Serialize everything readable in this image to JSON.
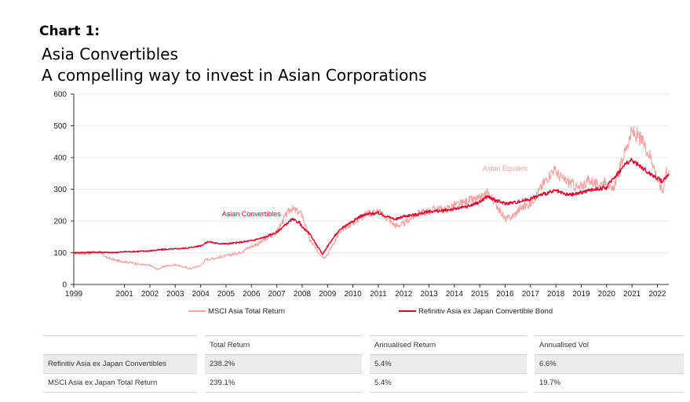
{
  "header": {
    "chart_label": "Chart 1:",
    "title": "Asia Convertibles",
    "subtitle": "A compelling way to invest in Asian Corporations"
  },
  "chart_data": {
    "type": "line",
    "title": "Asia Convertibles",
    "subtitle": "A compelling way to invest in Asian Corporations",
    "xlabel": "",
    "ylabel": "",
    "xlim": [
      1999,
      2022.45
    ],
    "ylim": [
      0,
      600
    ],
    "y_ticks": [
      0,
      100,
      200,
      300,
      400,
      500,
      600
    ],
    "x_ticks": [
      "1999",
      "2001",
      "2002",
      "2003",
      "2004",
      "2005",
      "2006",
      "2007",
      "2008",
      "2009",
      "2010",
      "2011",
      "2012",
      "2013",
      "2014",
      "2015",
      "2016",
      "2017",
      "2018",
      "2019",
      "2020",
      "2021",
      "2022"
    ],
    "grid": "horizontal",
    "legend_position": "bottom",
    "series": [
      {
        "name": "MSCI Asia Total Return",
        "color": "#f4a3a3",
        "x": [
          1999.0,
          1999.5,
          2000.0,
          2000.3,
          2000.7,
          2001.0,
          2001.5,
          2002.0,
          2002.3,
          2002.6,
          2003.0,
          2003.2,
          2003.6,
          2004.0,
          2004.2,
          2004.5,
          2005.0,
          2005.5,
          2006.0,
          2006.3,
          2006.6,
          2007.0,
          2007.3,
          2007.55,
          2007.8,
          2008.0,
          2008.3,
          2008.6,
          2008.85,
          2009.0,
          2009.3,
          2009.6,
          2010.0,
          2010.3,
          2010.6,
          2011.0,
          2011.3,
          2011.7,
          2012.0,
          2012.3,
          2012.6,
          2013.0,
          2013.3,
          2013.6,
          2014.0,
          2014.3,
          2014.6,
          2015.0,
          2015.3,
          2015.6,
          2016.0,
          2016.3,
          2016.6,
          2017.0,
          2017.3,
          2017.6,
          2017.9,
          2018.0,
          2018.3,
          2018.6,
          2018.9,
          2019.0,
          2019.3,
          2019.6,
          2019.9,
          2020.0,
          2020.2,
          2020.5,
          2020.8,
          2021.0,
          2021.2,
          2021.5,
          2021.8,
          2022.0,
          2022.2,
          2022.35,
          2022.45
        ],
        "values": [
          100,
          98,
          102,
          85,
          75,
          72,
          65,
          60,
          48,
          58,
          62,
          58,
          50,
          60,
          78,
          82,
          90,
          100,
          120,
          130,
          145,
          165,
          210,
          240,
          230,
          220,
          140,
          105,
          85,
          95,
          140,
          175,
          195,
          210,
          225,
          230,
          210,
          185,
          190,
          210,
          225,
          230,
          240,
          235,
          250,
          255,
          265,
          270,
          290,
          260,
          205,
          215,
          240,
          255,
          290,
          330,
          360,
          355,
          330,
          320,
          300,
          310,
          330,
          315,
          320,
          330,
          290,
          360,
          440,
          480,
          470,
          440,
          390,
          330,
          295,
          360,
          345
        ]
      },
      {
        "name": "Refinitiv Asia ex Japan Convertible Bond",
        "color": "#e4002b",
        "x": [
          1999.0,
          1999.5,
          2000.0,
          2000.5,
          2001.0,
          2001.5,
          2002.0,
          2002.5,
          2003.0,
          2003.5,
          2004.0,
          2004.3,
          2004.6,
          2005.0,
          2005.5,
          2006.0,
          2006.5,
          2007.0,
          2007.3,
          2007.6,
          2007.9,
          2008.0,
          2008.3,
          2008.6,
          2008.8,
          2009.0,
          2009.3,
          2009.6,
          2010.0,
          2010.3,
          2010.6,
          2011.0,
          2011.3,
          2011.7,
          2012.0,
          2012.5,
          2013.0,
          2013.5,
          2014.0,
          2014.5,
          2015.0,
          2015.3,
          2015.6,
          2016.0,
          2016.5,
          2017.0,
          2017.5,
          2018.0,
          2018.3,
          2018.6,
          2019.0,
          2019.5,
          2020.0,
          2020.2,
          2020.5,
          2020.8,
          2021.0,
          2021.3,
          2021.6,
          2022.0,
          2022.2,
          2022.35,
          2022.45
        ],
        "values": [
          100,
          101,
          102,
          100,
          103,
          104,
          106,
          110,
          112,
          115,
          122,
          135,
          130,
          128,
          132,
          138,
          148,
          165,
          185,
          205,
          195,
          180,
          160,
          120,
          95,
          120,
          155,
          180,
          200,
          215,
          222,
          225,
          215,
          205,
          215,
          220,
          230,
          232,
          238,
          245,
          260,
          278,
          265,
          255,
          260,
          270,
          285,
          295,
          285,
          282,
          290,
          300,
          305,
          330,
          355,
          385,
          390,
          375,
          355,
          335,
          325,
          340,
          345
        ]
      }
    ],
    "annotations": [
      {
        "text": "Asian Equities",
        "x": 2016.0,
        "y": 358,
        "color": "#f4a3a3"
      },
      {
        "text": "Asian Convertibles",
        "x": 2006.0,
        "y": 215,
        "color": "#e4002b"
      }
    ]
  },
  "table": {
    "headers": [
      "",
      "Total Return",
      "Annualised Return",
      "Annualised Vol"
    ],
    "rows": [
      [
        "Refinitiv Asia ex Japan Convertibles",
        "238.2%",
        "5.4%",
        "6.6%"
      ],
      [
        "MSCI Asia ex Japan Total Return",
        "239.1%",
        "5.4%",
        "19.7%"
      ]
    ]
  }
}
